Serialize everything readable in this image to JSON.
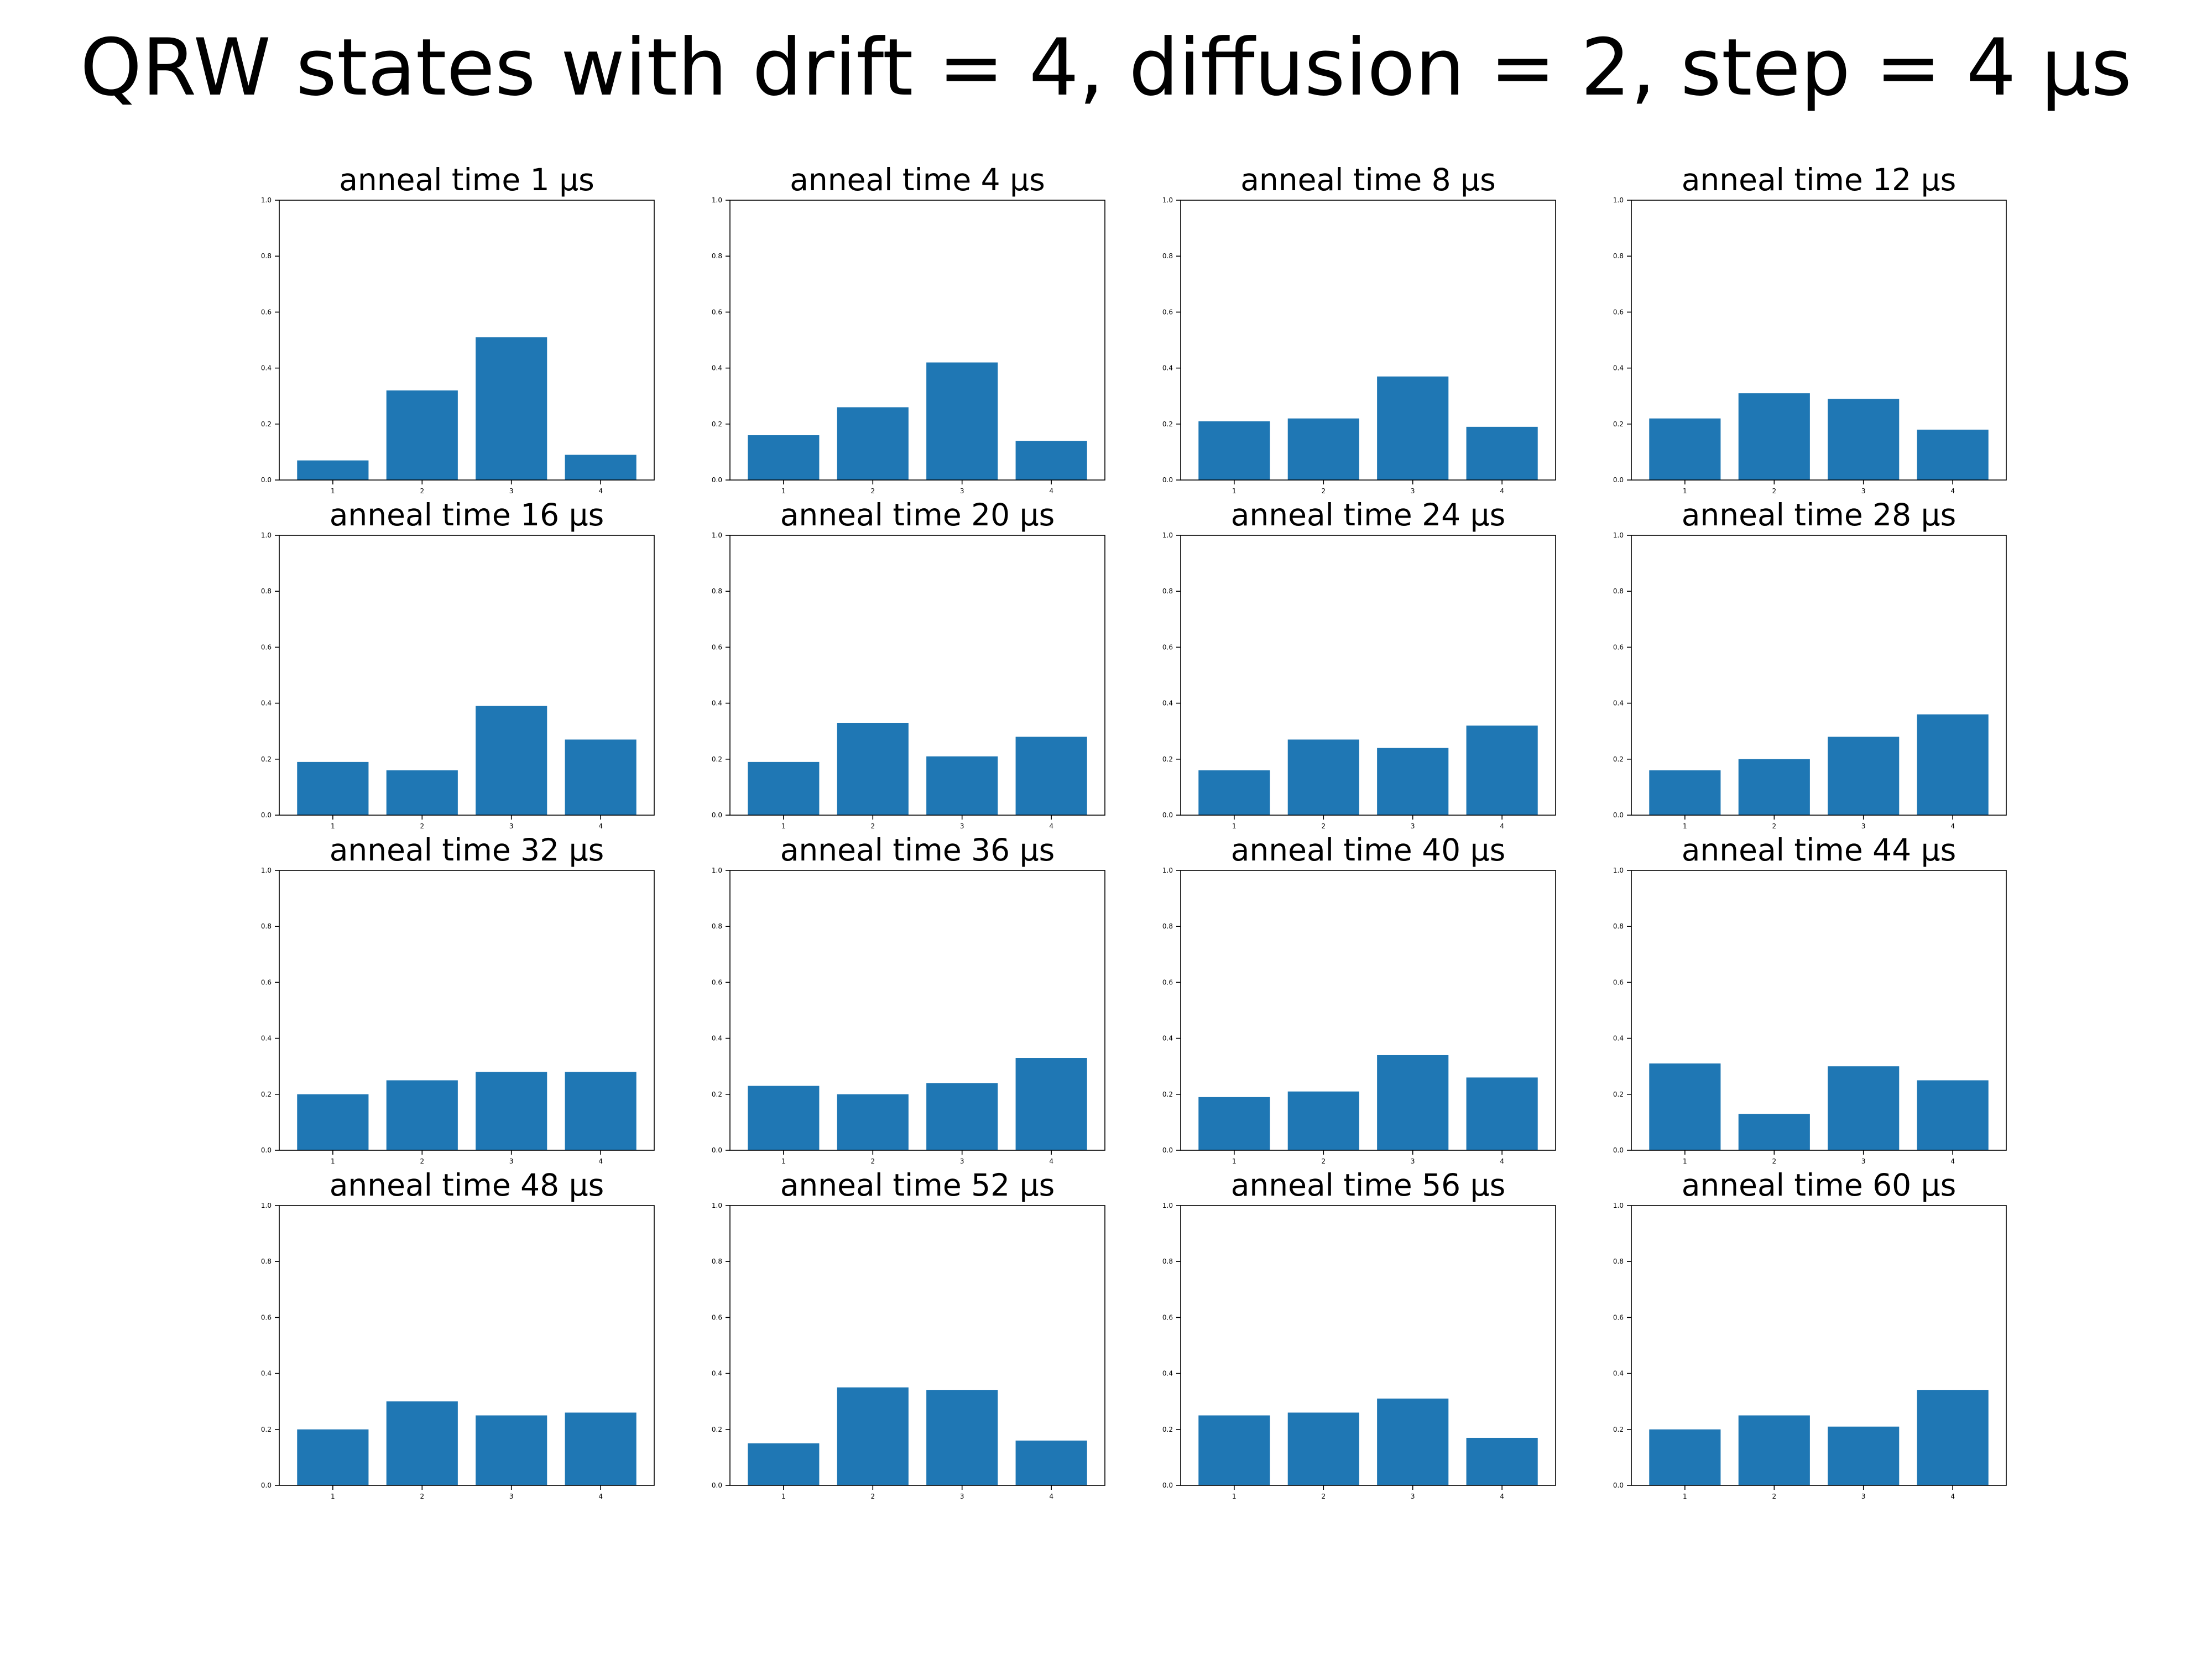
{
  "figure": {
    "title": "QRW states with drift = 4, diffusion = 2, step = 4 μs"
  },
  "colors": {
    "bar": "#1f77b4",
    "axis": "#000000",
    "background": "#ffffff"
  },
  "chart_data": [
    {
      "type": "bar",
      "title": "anneal time 1 μs",
      "categories": [
        "1",
        "2",
        "3",
        "4"
      ],
      "values": [
        0.07,
        0.32,
        0.51,
        0.09
      ],
      "ylim": [
        0,
        1
      ],
      "yticks": [
        "0.0",
        "0.2",
        "0.4",
        "0.6",
        "0.8",
        "1.0"
      ],
      "grid": false
    },
    {
      "type": "bar",
      "title": "anneal time 4 μs",
      "categories": [
        "1",
        "2",
        "3",
        "4"
      ],
      "values": [
        0.16,
        0.26,
        0.42,
        0.14
      ],
      "ylim": [
        0,
        1
      ],
      "yticks": [
        "0.0",
        "0.2",
        "0.4",
        "0.6",
        "0.8",
        "1.0"
      ],
      "grid": false
    },
    {
      "type": "bar",
      "title": "anneal time 8 μs",
      "categories": [
        "1",
        "2",
        "3",
        "4"
      ],
      "values": [
        0.21,
        0.22,
        0.37,
        0.19
      ],
      "ylim": [
        0,
        1
      ],
      "yticks": [
        "0.0",
        "0.2",
        "0.4",
        "0.6",
        "0.8",
        "1.0"
      ],
      "grid": false
    },
    {
      "type": "bar",
      "title": "anneal time 12 μs",
      "categories": [
        "1",
        "2",
        "3",
        "4"
      ],
      "values": [
        0.22,
        0.31,
        0.29,
        0.18
      ],
      "ylim": [
        0,
        1
      ],
      "yticks": [
        "0.0",
        "0.2",
        "0.4",
        "0.6",
        "0.8",
        "1.0"
      ],
      "grid": false
    },
    {
      "type": "bar",
      "title": "anneal time 16 μs",
      "categories": [
        "1",
        "2",
        "3",
        "4"
      ],
      "values": [
        0.19,
        0.16,
        0.39,
        0.27
      ],
      "ylim": [
        0,
        1
      ],
      "yticks": [
        "0.0",
        "0.2",
        "0.4",
        "0.6",
        "0.8",
        "1.0"
      ],
      "grid": false
    },
    {
      "type": "bar",
      "title": "anneal time 20 μs",
      "categories": [
        "1",
        "2",
        "3",
        "4"
      ],
      "values": [
        0.19,
        0.33,
        0.21,
        0.28
      ],
      "ylim": [
        0,
        1
      ],
      "yticks": [
        "0.0",
        "0.2",
        "0.4",
        "0.6",
        "0.8",
        "1.0"
      ],
      "grid": false
    },
    {
      "type": "bar",
      "title": "anneal time 24 μs",
      "categories": [
        "1",
        "2",
        "3",
        "4"
      ],
      "values": [
        0.16,
        0.27,
        0.24,
        0.32
      ],
      "ylim": [
        0,
        1
      ],
      "yticks": [
        "0.0",
        "0.2",
        "0.4",
        "0.6",
        "0.8",
        "1.0"
      ],
      "grid": false
    },
    {
      "type": "bar",
      "title": "anneal time 28 μs",
      "categories": [
        "1",
        "2",
        "3",
        "4"
      ],
      "values": [
        0.16,
        0.2,
        0.28,
        0.36
      ],
      "ylim": [
        0,
        1
      ],
      "yticks": [
        "0.0",
        "0.2",
        "0.4",
        "0.6",
        "0.8",
        "1.0"
      ],
      "grid": false
    },
    {
      "type": "bar",
      "title": "anneal time 32 μs",
      "categories": [
        "1",
        "2",
        "3",
        "4"
      ],
      "values": [
        0.2,
        0.25,
        0.28,
        0.28
      ],
      "ylim": [
        0,
        1
      ],
      "yticks": [
        "0.0",
        "0.2",
        "0.4",
        "0.6",
        "0.8",
        "1.0"
      ],
      "grid": false
    },
    {
      "type": "bar",
      "title": "anneal time 36 μs",
      "categories": [
        "1",
        "2",
        "3",
        "4"
      ],
      "values": [
        0.23,
        0.2,
        0.24,
        0.33
      ],
      "ylim": [
        0,
        1
      ],
      "yticks": [
        "0.0",
        "0.2",
        "0.4",
        "0.6",
        "0.8",
        "1.0"
      ],
      "grid": false
    },
    {
      "type": "bar",
      "title": "anneal time 40 μs",
      "categories": [
        "1",
        "2",
        "3",
        "4"
      ],
      "values": [
        0.19,
        0.21,
        0.34,
        0.26
      ],
      "ylim": [
        0,
        1
      ],
      "yticks": [
        "0.0",
        "0.2",
        "0.4",
        "0.6",
        "0.8",
        "1.0"
      ],
      "grid": false
    },
    {
      "type": "bar",
      "title": "anneal time 44 μs",
      "categories": [
        "1",
        "2",
        "3",
        "4"
      ],
      "values": [
        0.31,
        0.13,
        0.3,
        0.25
      ],
      "ylim": [
        0,
        1
      ],
      "yticks": [
        "0.0",
        "0.2",
        "0.4",
        "0.6",
        "0.8",
        "1.0"
      ],
      "grid": false
    },
    {
      "type": "bar",
      "title": "anneal time 48 μs",
      "categories": [
        "1",
        "2",
        "3",
        "4"
      ],
      "values": [
        0.2,
        0.3,
        0.25,
        0.26
      ],
      "ylim": [
        0,
        1
      ],
      "yticks": [
        "0.0",
        "0.2",
        "0.4",
        "0.6",
        "0.8",
        "1.0"
      ],
      "grid": false
    },
    {
      "type": "bar",
      "title": "anneal time 52 μs",
      "categories": [
        "1",
        "2",
        "3",
        "4"
      ],
      "values": [
        0.15,
        0.35,
        0.34,
        0.16
      ],
      "ylim": [
        0,
        1
      ],
      "yticks": [
        "0.0",
        "0.2",
        "0.4",
        "0.6",
        "0.8",
        "1.0"
      ],
      "grid": false
    },
    {
      "type": "bar",
      "title": "anneal time 56 μs",
      "categories": [
        "1",
        "2",
        "3",
        "4"
      ],
      "values": [
        0.25,
        0.26,
        0.31,
        0.17
      ],
      "ylim": [
        0,
        1
      ],
      "yticks": [
        "0.0",
        "0.2",
        "0.4",
        "0.6",
        "0.8",
        "1.0"
      ],
      "grid": false
    },
    {
      "type": "bar",
      "title": "anneal time 60 μs",
      "categories": [
        "1",
        "2",
        "3",
        "4"
      ],
      "values": [
        0.2,
        0.25,
        0.21,
        0.34
      ],
      "ylim": [
        0,
        1
      ],
      "yticks": [
        "0.0",
        "0.2",
        "0.4",
        "0.6",
        "0.8",
        "1.0"
      ],
      "grid": false
    }
  ]
}
